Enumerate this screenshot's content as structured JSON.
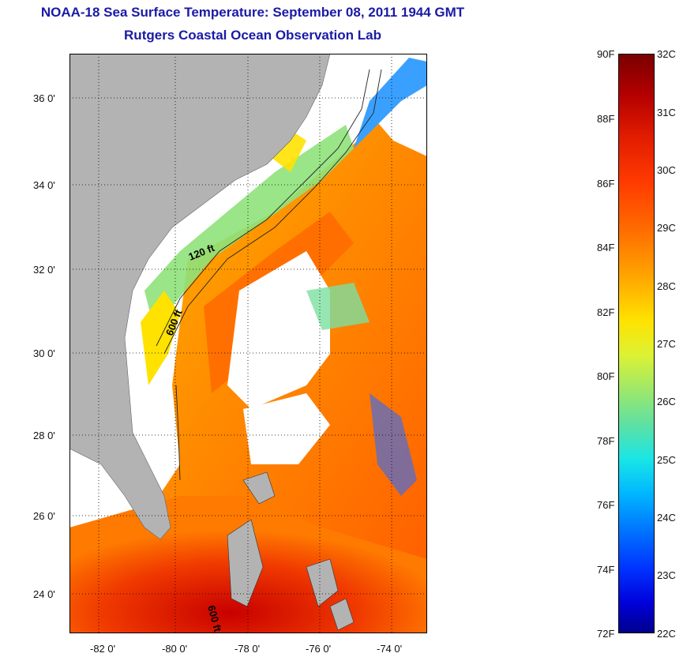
{
  "header": {
    "title": "NOAA-18 Sea Surface Temperature:  September 08, 2011 1944 GMT",
    "subtitle": "Rutgers Coastal Ocean Observation Lab"
  },
  "map": {
    "y_ticks": [
      "36 0'",
      "34 0'",
      "32 0'",
      "30 0'",
      "28 0'",
      "26 0'",
      "24 0'"
    ],
    "x_ticks": [
      "-82 0'",
      "-80 0'",
      "-78 0'",
      "-76 0'",
      "-74 0'"
    ],
    "contour_labels": [
      "120 ft",
      "600 ft",
      "600 ft"
    ],
    "land_color": "#b3b3b3",
    "grid": "dotted"
  },
  "colorbar": {
    "fahrenheit_labels": [
      "90F",
      "88F",
      "86F",
      "84F",
      "82F",
      "80F",
      "78F",
      "76F",
      "74F",
      "72F"
    ],
    "celsius_labels": [
      "32C",
      "31C",
      "30C",
      "29C",
      "28C",
      "27C",
      "26C",
      "25C",
      "24C",
      "23C",
      "22C"
    ],
    "range_f": [
      72,
      90
    ],
    "range_c": [
      22,
      32
    ]
  }
}
